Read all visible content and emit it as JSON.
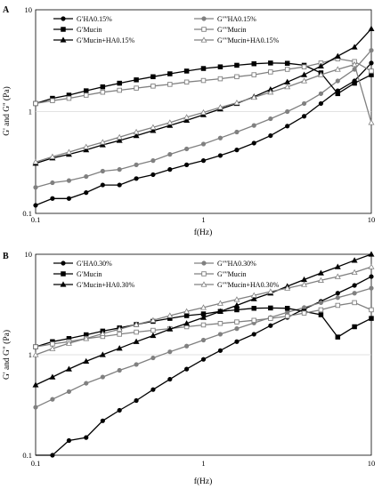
{
  "chart_data": [
    {
      "type": "line",
      "panel_label": "A",
      "xlabel": "f(Hz)",
      "ylabel": "G' and G'' (Pa)",
      "xscale": "log",
      "yscale": "log",
      "xlim": [
        0.1,
        10
      ],
      "ylim": [
        0.1,
        10
      ],
      "xticks": [
        "0.1",
        "1",
        "10"
      ],
      "yticks": [
        "0.1",
        "1",
        "10"
      ],
      "legend_position": "top",
      "x": [
        0.1,
        0.126,
        0.158,
        0.2,
        0.251,
        0.316,
        0.398,
        0.501,
        0.631,
        0.794,
        1.0,
        1.26,
        1.58,
        2.0,
        2.51,
        3.16,
        3.98,
        5.01,
        6.31,
        7.94,
        10.0
      ],
      "series": [
        {
          "name": "GʹHA0.15%",
          "color": "#000000",
          "marker": "circle",
          "values": [
            0.12,
            0.14,
            0.14,
            0.16,
            0.19,
            0.19,
            0.22,
            0.24,
            0.27,
            0.3,
            0.33,
            0.37,
            0.42,
            0.49,
            0.58,
            0.72,
            0.9,
            1.2,
            1.6,
            2.0,
            3.0
          ]
        },
        {
          "name": "GʺʺHA0.15%",
          "color": "#808080",
          "marker": "circle",
          "values": [
            0.18,
            0.2,
            0.21,
            0.23,
            0.26,
            0.27,
            0.3,
            0.33,
            0.38,
            0.43,
            0.48,
            0.55,
            0.63,
            0.73,
            0.85,
            1.0,
            1.2,
            1.5,
            2.0,
            2.6,
            4.0
          ]
        },
        {
          "name": "GʹMucin",
          "color": "#000000",
          "marker": "square",
          "values": [
            1.2,
            1.35,
            1.45,
            1.6,
            1.75,
            1.9,
            2.05,
            2.2,
            2.35,
            2.5,
            2.65,
            2.75,
            2.85,
            2.95,
            3.0,
            2.98,
            2.85,
            2.4,
            1.5,
            1.9,
            2.3
          ]
        },
        {
          "name": "GʺʺMucin",
          "color": "#808080",
          "marker": "square",
          "values": [
            1.2,
            1.28,
            1.35,
            1.45,
            1.55,
            1.62,
            1.7,
            1.78,
            1.85,
            1.95,
            2.02,
            2.1,
            2.2,
            2.3,
            2.45,
            2.6,
            2.75,
            3.0,
            3.3,
            3.1,
            2.5
          ]
        },
        {
          "name": "GʹMucin+HA0.15%",
          "color": "#000000",
          "marker": "triangle-filled",
          "values": [
            0.31,
            0.35,
            0.38,
            0.42,
            0.47,
            0.52,
            0.58,
            0.65,
            0.73,
            0.82,
            0.93,
            1.06,
            1.2,
            1.4,
            1.65,
            1.95,
            2.3,
            2.8,
            3.5,
            4.3,
            6.5
          ]
        },
        {
          "name": "GʺʺMucin+HA0.15%",
          "color": "#808080",
          "marker": "triangle-open",
          "values": [
            0.32,
            0.36,
            0.4,
            0.45,
            0.5,
            0.56,
            0.63,
            0.7,
            0.78,
            0.88,
            0.98,
            1.1,
            1.22,
            1.38,
            1.55,
            1.75,
            2.0,
            2.3,
            2.6,
            2.9,
            0.78
          ]
        }
      ]
    },
    {
      "type": "line",
      "panel_label": "B",
      "xlabel": "f(Hz)",
      "ylabel": "G' and G\" (Pa)",
      "xscale": "log",
      "yscale": "log",
      "xlim": [
        0.1,
        10
      ],
      "ylim": [
        0.1,
        10
      ],
      "xticks": [
        "0.1",
        "1",
        "10"
      ],
      "yticks": [
        "0.1",
        "1",
        "10"
      ],
      "legend_position": "top",
      "x": [
        0.1,
        0.126,
        0.158,
        0.2,
        0.251,
        0.316,
        0.398,
        0.501,
        0.631,
        0.794,
        1.0,
        1.26,
        1.58,
        2.0,
        2.51,
        3.16,
        3.98,
        5.01,
        6.31,
        7.94,
        10.0
      ],
      "series": [
        {
          "name": "GʹHA0.30%",
          "color": "#000000",
          "marker": "circle",
          "values": [
            0.07,
            0.1,
            0.14,
            0.15,
            0.22,
            0.28,
            0.35,
            0.45,
            0.57,
            0.72,
            0.9,
            1.1,
            1.35,
            1.6,
            1.95,
            2.35,
            2.85,
            3.4,
            4.1,
            4.9,
            6.0
          ]
        },
        {
          "name": "GʺʺHA0.30%",
          "color": "#808080",
          "marker": "circle",
          "values": [
            0.3,
            0.36,
            0.43,
            0.52,
            0.6,
            0.7,
            0.8,
            0.93,
            1.07,
            1.22,
            1.4,
            1.6,
            1.82,
            2.07,
            2.35,
            2.65,
            2.95,
            3.3,
            3.7,
            4.1,
            4.6
          ]
        },
        {
          "name": "GʹMucin",
          "color": "#000000",
          "marker": "square",
          "values": [
            1.2,
            1.35,
            1.45,
            1.58,
            1.72,
            1.85,
            2.0,
            2.15,
            2.3,
            2.45,
            2.55,
            2.7,
            2.8,
            2.9,
            2.92,
            2.9,
            2.7,
            2.5,
            1.5,
            1.9,
            2.3
          ]
        },
        {
          "name": "GʺʺMucin",
          "color": "#808080",
          "marker": "square",
          "values": [
            1.2,
            1.28,
            1.35,
            1.45,
            1.52,
            1.6,
            1.68,
            1.75,
            1.82,
            1.9,
            1.98,
            2.05,
            2.12,
            2.2,
            2.3,
            2.42,
            2.6,
            2.8,
            3.1,
            3.3,
            2.8
          ]
        },
        {
          "name": "GʹMucin+HA0.30%",
          "color": "#000000",
          "marker": "triangle-filled",
          "values": [
            0.5,
            0.6,
            0.72,
            0.86,
            1.0,
            1.16,
            1.35,
            1.55,
            1.8,
            2.05,
            2.35,
            2.7,
            3.1,
            3.6,
            4.1,
            4.8,
            5.6,
            6.5,
            7.5,
            8.7,
            10.0
          ]
        },
        {
          "name": "GʺʺMucin+HA0.30%",
          "color": "#808080",
          "marker": "triangle-open",
          "values": [
            1.0,
            1.15,
            1.3,
            1.45,
            1.62,
            1.8,
            2.0,
            2.2,
            2.45,
            2.7,
            2.95,
            3.25,
            3.55,
            3.9,
            4.25,
            4.6,
            5.0,
            5.5,
            6.0,
            6.6,
            7.5
          ]
        }
      ]
    }
  ]
}
